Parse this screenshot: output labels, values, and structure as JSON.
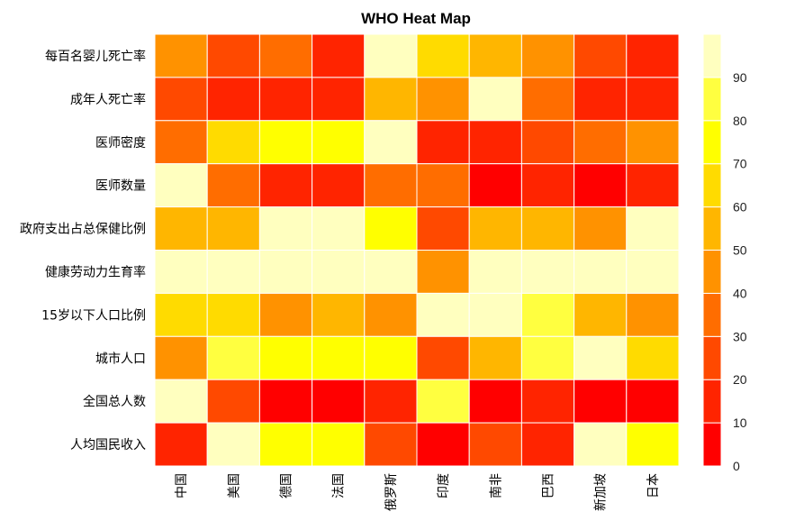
{
  "chart_data": {
    "type": "heatmap",
    "title": "WHO Heat Map",
    "rows": [
      "每百名婴儿死亡率",
      "成年人死亡率",
      "医师密度",
      "医师数量",
      "政府支出占总保健比例",
      "健康劳动力生育率",
      "15岁以下人口比例",
      "城市人口",
      "全国总人数",
      "人均国民收入"
    ],
    "columns": [
      "中国",
      "美国",
      "德国",
      "法国",
      "俄罗斯",
      "印度",
      "南非",
      "巴西",
      "新加坡",
      "日本"
    ],
    "values": [
      [
        45,
        25,
        35,
        15,
        95,
        65,
        55,
        45,
        25,
        15
      ],
      [
        25,
        15,
        15,
        15,
        55,
        45,
        95,
        35,
        15,
        15
      ],
      [
        35,
        65,
        75,
        75,
        95,
        15,
        15,
        25,
        35,
        45
      ],
      [
        95,
        35,
        15,
        15,
        35,
        35,
        5,
        15,
        5,
        15
      ],
      [
        55,
        55,
        95,
        95,
        75,
        25,
        55,
        55,
        45,
        95
      ],
      [
        95,
        95,
        95,
        95,
        95,
        45,
        95,
        95,
        95,
        95
      ],
      [
        65,
        65,
        45,
        55,
        45,
        95,
        95,
        85,
        55,
        45
      ],
      [
        45,
        85,
        75,
        75,
        75,
        25,
        55,
        85,
        95,
        65
      ],
      [
        95,
        25,
        5,
        5,
        15,
        85,
        5,
        15,
        5,
        5
      ],
      [
        15,
        95,
        75,
        75,
        25,
        5,
        25,
        15,
        95,
        75
      ]
    ],
    "colorscale": {
      "bins": [
        {
          "min": 0,
          "max": 10,
          "color": "#FF0000"
        },
        {
          "min": 10,
          "max": 20,
          "color": "#FF2400"
        },
        {
          "min": 20,
          "max": 30,
          "color": "#FF4900"
        },
        {
          "min": 30,
          "max": 40,
          "color": "#FF6D00"
        },
        {
          "min": 40,
          "max": 50,
          "color": "#FF9200"
        },
        {
          "min": 50,
          "max": 60,
          "color": "#FFB600"
        },
        {
          "min": 60,
          "max": 70,
          "color": "#FFDB00"
        },
        {
          "min": 70,
          "max": 80,
          "color": "#FFFF00"
        },
        {
          "min": 80,
          "max": 90,
          "color": "#FFFF40"
        },
        {
          "min": 90,
          "max": 100,
          "color": "#FFFFBF"
        }
      ],
      "tick_labels": [
        "0",
        "10",
        "20",
        "30",
        "40",
        "50",
        "60",
        "70",
        "80",
        "90"
      ],
      "range": [
        0,
        100
      ],
      "position": "right"
    }
  }
}
